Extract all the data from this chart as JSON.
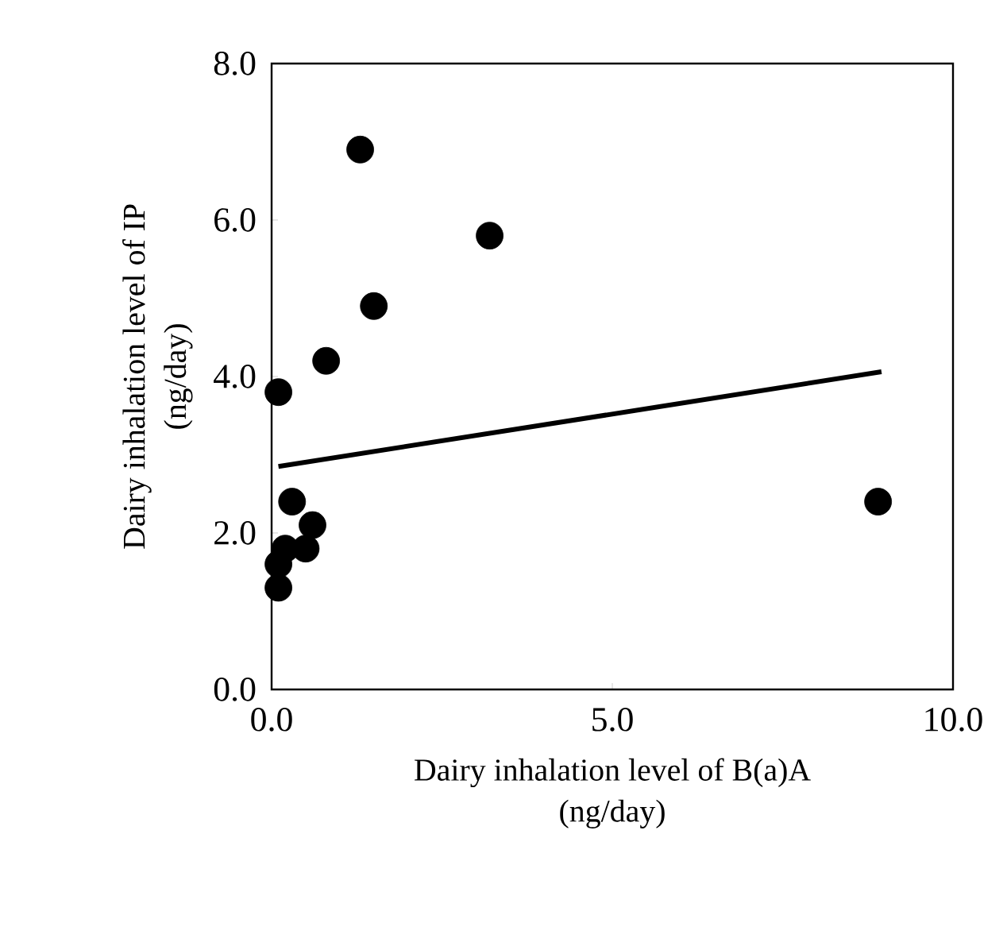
{
  "chart_data": {
    "type": "scatter",
    "xlabel": "Dairy inhalation level of B(a)A\n(ng/day)",
    "ylabel": "Dairy inhalation level of IP\n(ng/day)",
    "xlim": [
      0,
      10
    ],
    "ylim": [
      0,
      8
    ],
    "xticks": [
      {
        "value": 0,
        "label": "0.0"
      },
      {
        "value": 5,
        "label": "5.0"
      },
      {
        "value": 10,
        "label": "10.0"
      }
    ],
    "yticks": [
      {
        "value": 0,
        "label": "0.0"
      },
      {
        "value": 2,
        "label": "2.0"
      },
      {
        "value": 4,
        "label": "4.0"
      },
      {
        "value": 6,
        "label": "6.0"
      },
      {
        "value": 8,
        "label": "8.0"
      }
    ],
    "grid": false,
    "series": [
      {
        "marker": "circle",
        "color": "#000000",
        "x": [
          1.3,
          3.2,
          1.5,
          0.8,
          0.1,
          8.9,
          0.3,
          0.6,
          0.5,
          0.2,
          0.1,
          0.1
        ],
        "values": [
          6.9,
          5.8,
          4.9,
          4.2,
          3.8,
          2.4,
          2.4,
          2.1,
          1.8,
          1.8,
          1.6,
          1.3
        ]
      },
      {
        "type": "line",
        "marker": "none",
        "color": "#000000",
        "x": [
          0.1,
          8.95
        ],
        "values": [
          2.85,
          4.06
        ]
      }
    ]
  }
}
